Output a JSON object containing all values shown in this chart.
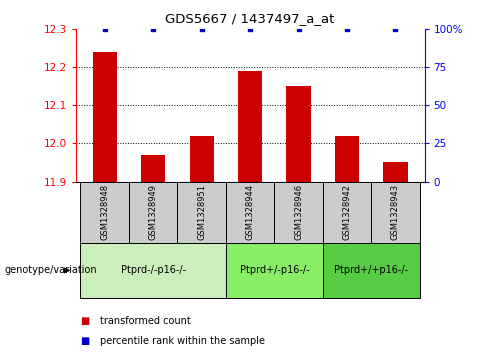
{
  "title": "GDS5667 / 1437497_a_at",
  "samples": [
    "GSM1328948",
    "GSM1328949",
    "GSM1328951",
    "GSM1328944",
    "GSM1328946",
    "GSM1328942",
    "GSM1328943"
  ],
  "bar_values": [
    12.24,
    11.97,
    12.02,
    12.19,
    12.15,
    12.02,
    11.95
  ],
  "percentile_dots_y": [
    12.3,
    12.3,
    12.3,
    12.3,
    12.3,
    12.3,
    12.3
  ],
  "bar_bottom": 11.9,
  "ylim": [
    11.9,
    12.3
  ],
  "y_ticks_left": [
    11.9,
    12.0,
    12.1,
    12.2,
    12.3
  ],
  "y_ticks_right": [
    0,
    25,
    50,
    75,
    100
  ],
  "y_ticks_right_labels": [
    "0",
    "25",
    "50",
    "75",
    "100%"
  ],
  "bar_color": "#cc0000",
  "dot_color": "#0000cc",
  "groups": [
    {
      "label": "Ptprd-/-p16-/-",
      "indices": [
        0,
        1,
        2
      ],
      "color": "#bbeeaa"
    },
    {
      "label": "Ptprd+/-p16-/-",
      "indices": [
        3,
        4
      ],
      "color": "#66dd55"
    },
    {
      "label": "Ptprd+/+p16-/-",
      "indices": [
        5,
        6
      ],
      "color": "#44cc33"
    }
  ],
  "legend_items": [
    {
      "label": "transformed count",
      "color": "#cc0000"
    },
    {
      "label": "percentile rank within the sample",
      "color": "#0000cc"
    }
  ],
  "sample_box_color": "#cccccc",
  "grid_yticks": [
    12.0,
    12.1,
    12.2
  ]
}
